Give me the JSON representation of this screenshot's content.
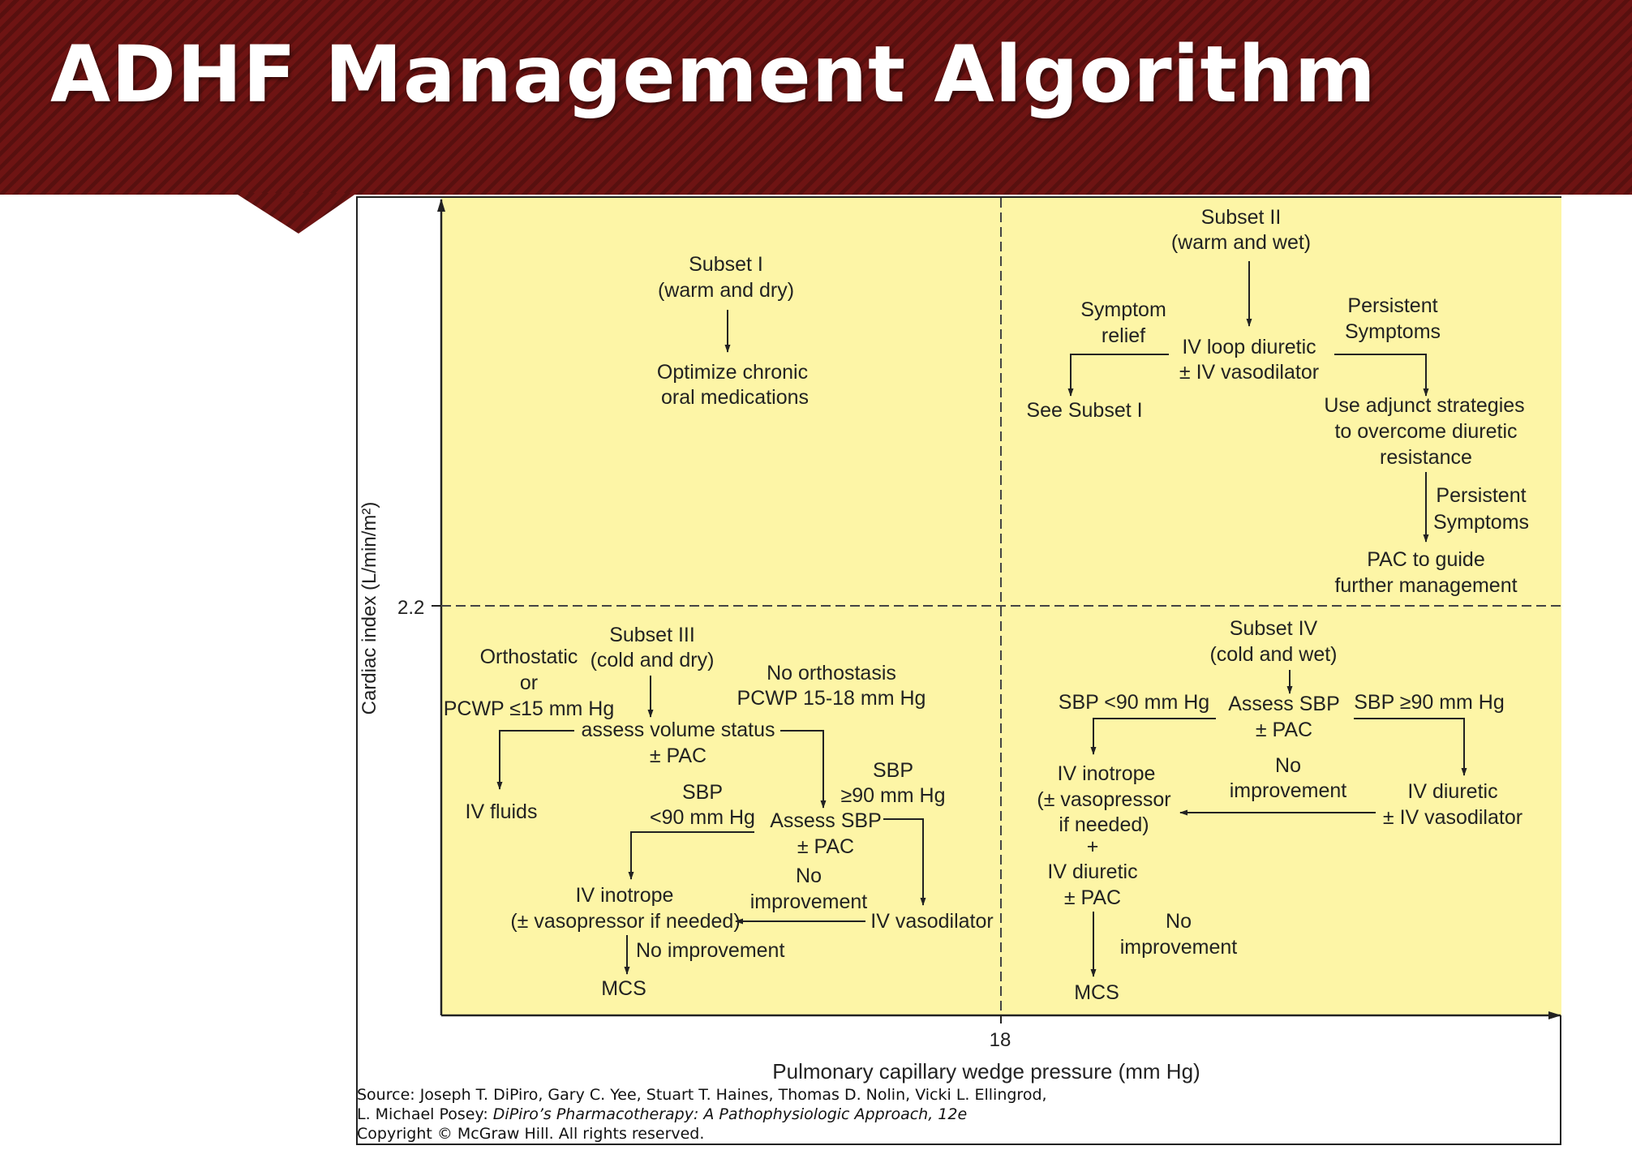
{
  "slide": {
    "title": "ADHF Management Algorithm"
  },
  "axes": {
    "y_label": "Cardiac index (L/min/m²)",
    "x_label": "Pulmonary capillary wedge pressure (mm Hg)",
    "y_threshold": "2.2",
    "x_threshold": "18"
  },
  "quadrants": {
    "subset1": {
      "title": "Subset I",
      "subtitle": "(warm and dry)",
      "action_line1": "Optimize chronic",
      "action_line2": "oral medications"
    },
    "subset2": {
      "title": "Subset II",
      "subtitle": "(warm and wet)",
      "symptom_relief_line1": "Symptom",
      "symptom_relief_line2": "relief",
      "therapy_line1": "IV loop diuretic",
      "therapy_line2": "± IV vasodilator",
      "see_subset": "See Subset I",
      "persistent_line1": "Persistent",
      "persistent_line2": "Symptoms",
      "adjunct_line1": "Use adjunct strategies",
      "adjunct_line2": "to overcome diuretic",
      "adjunct_line3": "resistance",
      "persistent2_line1": "Persistent",
      "persistent2_line2": "Symptoms",
      "pac_line1": "PAC to guide",
      "pac_line2": "further management"
    },
    "subset3": {
      "title": "Subset III",
      "subtitle": "(cold and dry)",
      "orthostatic_line1": "Orthostatic",
      "orthostatic_line2": "or",
      "orthostatic_line3": "PCWP ≤15 mm Hg",
      "no_orthostasis_line1": "No orthostasis",
      "no_orthostasis_line2": "PCWP 15-18 mm Hg",
      "assess_line1": "assess volume status",
      "assess_line2": "± PAC",
      "iv_fluids": "IV fluids",
      "sbp_low_line1": "SBP",
      "sbp_low_line2": "<90 mm Hg",
      "sbp_high_line1": "SBP",
      "sbp_high_line2": "≥90 mm Hg",
      "assess_sbp_line1": "Assess SBP",
      "assess_sbp_line2": "± PAC",
      "no_improvement_line1": "No",
      "no_improvement_line2": "improvement",
      "inotrope_line1": "IV inotrope",
      "inotrope_line2": "(± vasopressor if needed)",
      "iv_vasodilator": "IV vasodilator",
      "no_improvement_inline": "No improvement",
      "mcs": "MCS"
    },
    "subset4": {
      "title": "Subset IV",
      "subtitle": "(cold and wet)",
      "sbp_low": "SBP <90 mm Hg",
      "assess_line1": "Assess SBP",
      "assess_line2": "± PAC",
      "sbp_high": "SBP ≥90 mm Hg",
      "no_improvement_line1": "No",
      "no_improvement_line2": "improvement",
      "inotrope_line1": "IV inotrope",
      "inotrope_line2": "(± vasopressor",
      "inotrope_line3": "if needed)",
      "plus": "+",
      "diuretic_line1": "IV diuretic",
      "diuretic_line2": "± PAC",
      "iv_diuretic_line1": "IV diuretic",
      "iv_diuretic_line2": "± IV vasodilator",
      "no_improvement2_line1": "No",
      "no_improvement2_line2": "improvement",
      "mcs": "MCS"
    }
  },
  "citation": {
    "line1": "Source: Joseph T. DiPiro, Gary C. Yee, Stuart T. Haines, Thomas D. Nolin, Vicki L. Ellingrod,",
    "line2_author": "L. Michael Posey: ",
    "line2_book": "DiPiro’s Pharmacotherapy: A Pathophysiologic Approach, 12e",
    "line3": "Copyright © McGraw Hill. All rights reserved."
  },
  "colors": {
    "banner": "#6e1413",
    "plot_background": "#fdf5a6",
    "title_text": "#ffffff"
  }
}
